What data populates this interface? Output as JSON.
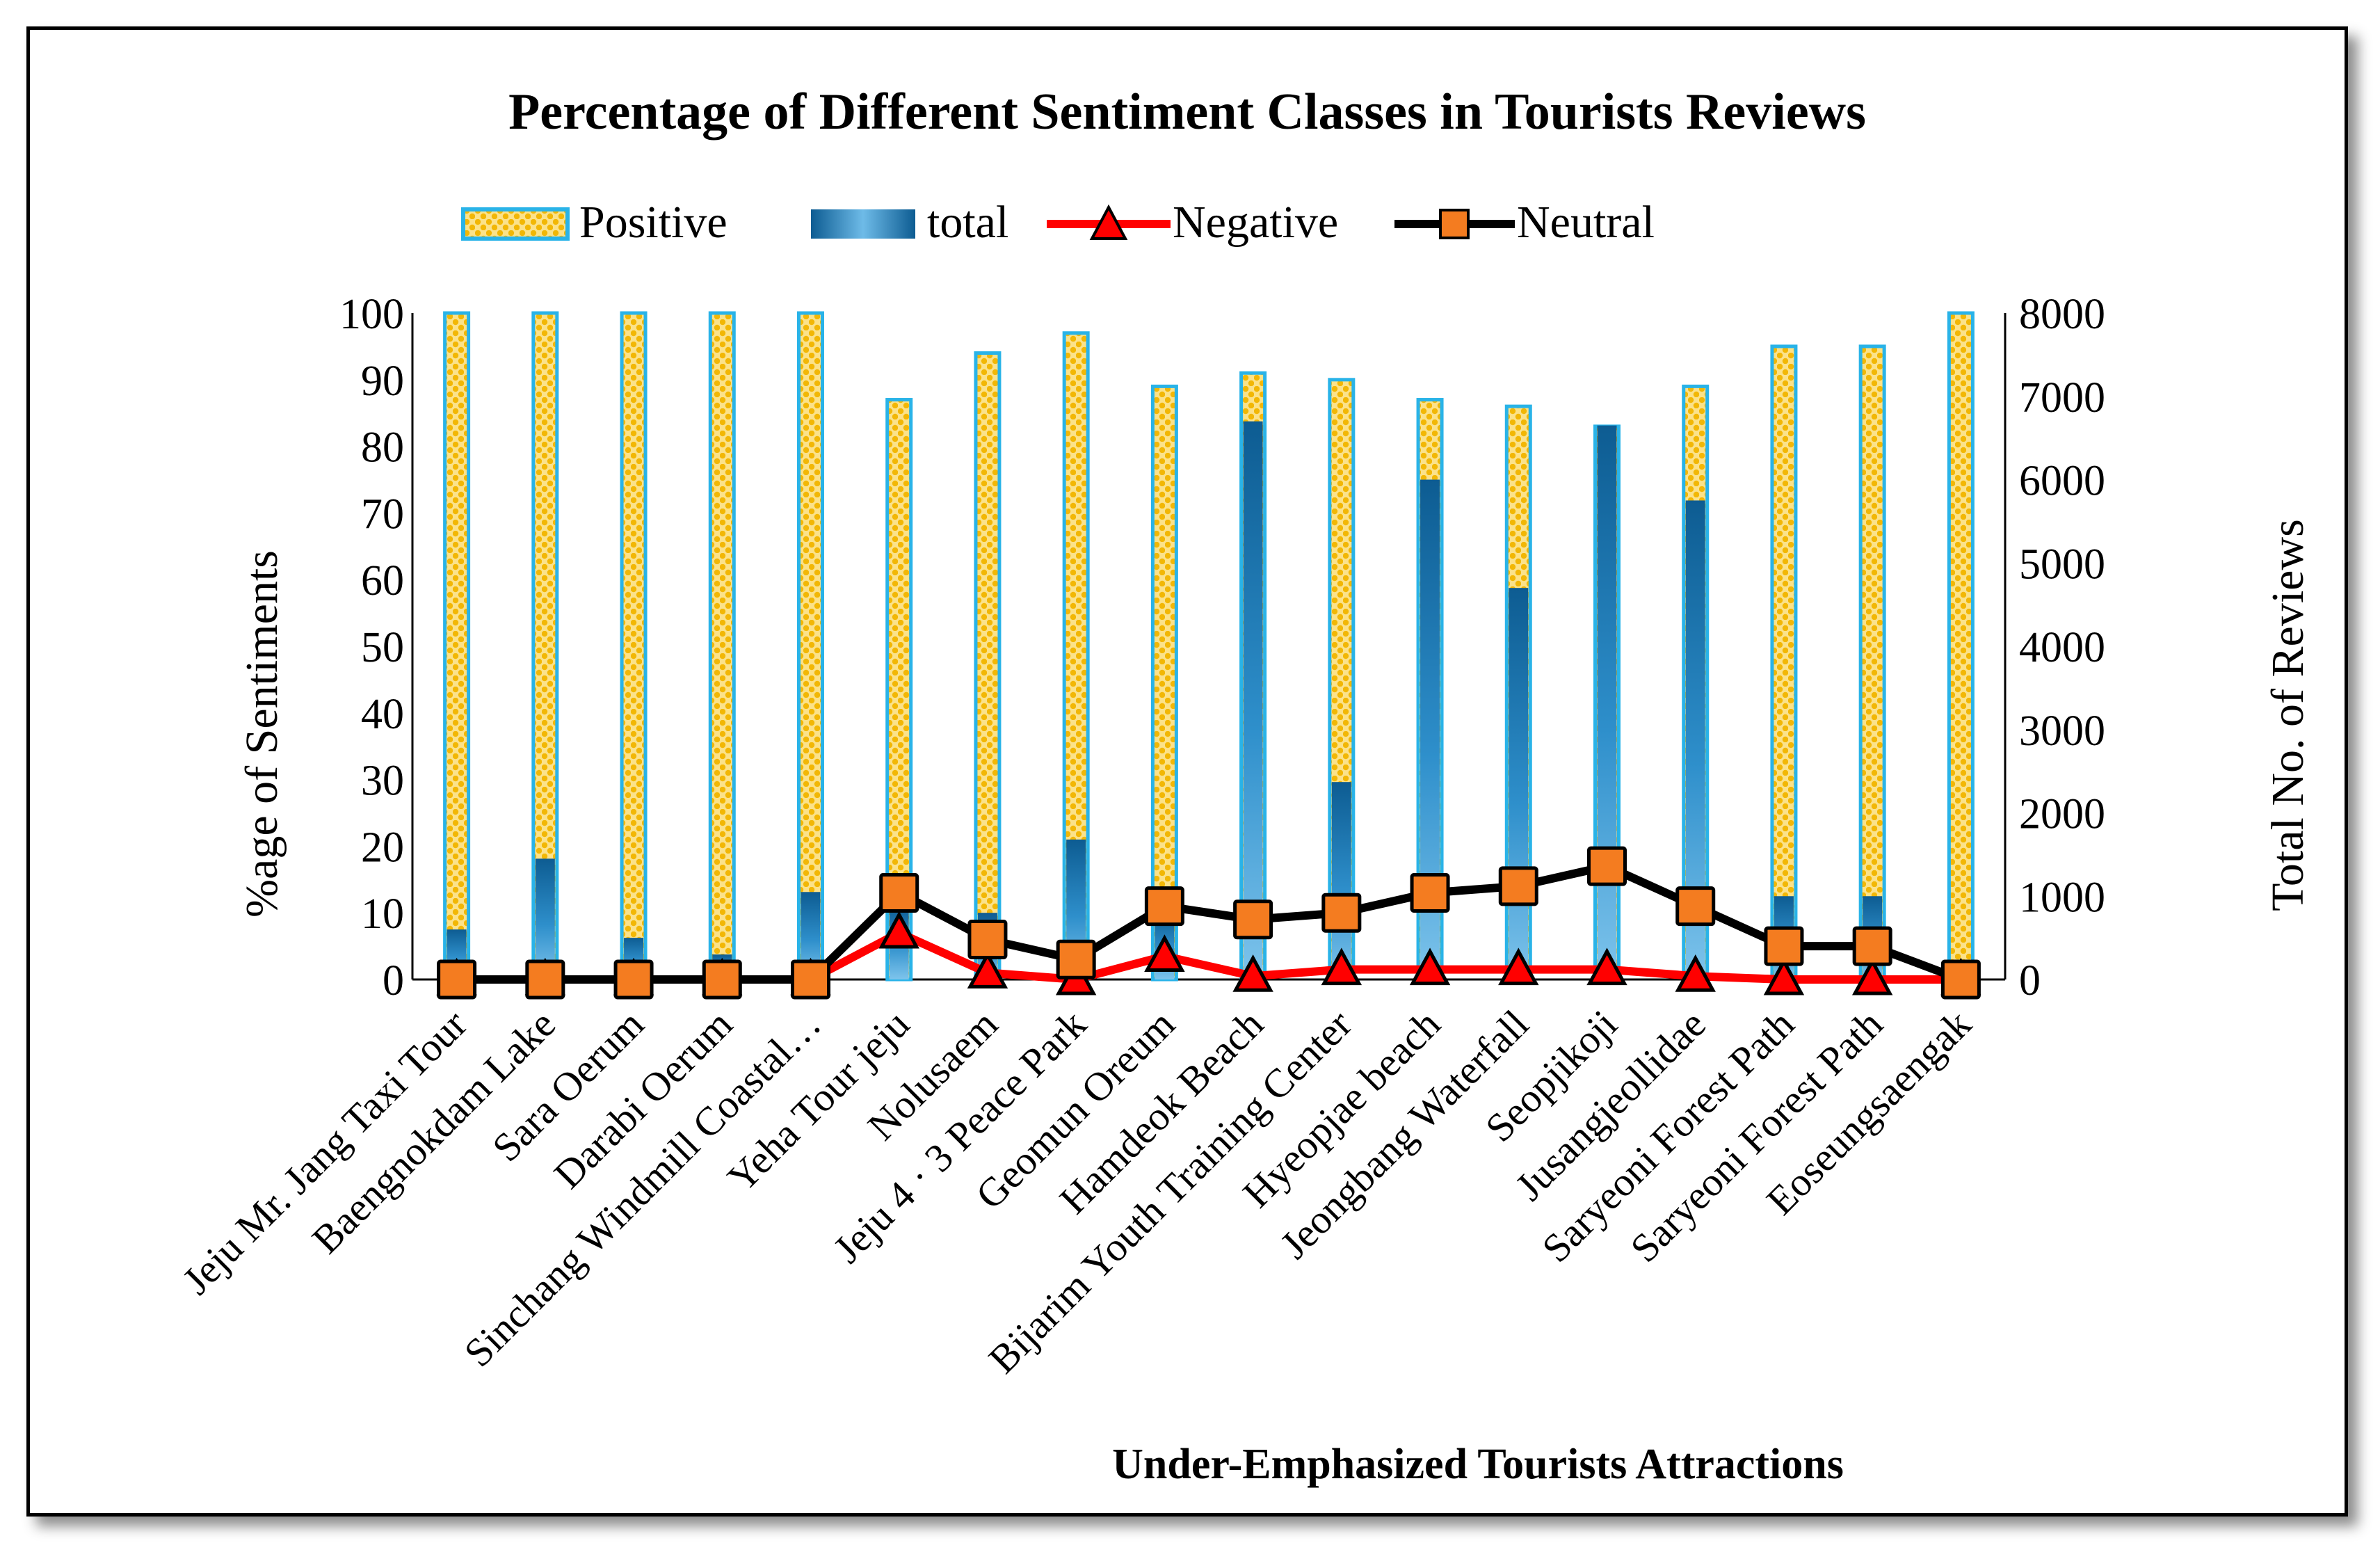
{
  "chart_data": {
    "type": "bar",
    "title": "Percentage of Different Sentiment Classes in Tourists Reviews",
    "xlabel": "Under-Emphasized Tourists Attractions",
    "ylabel": "%age of Sentiments",
    "y2label": "Total No. of  Reviews",
    "ylim": [
      0,
      100
    ],
    "y2lim": [
      0,
      8000
    ],
    "yticks": [
      "0",
      "10",
      "20",
      "30",
      "40",
      "50",
      "60",
      "70",
      "80",
      "90",
      "100"
    ],
    "y2ticks": [
      "0",
      "1000",
      "2000",
      "3000",
      "4000",
      "5000",
      "6000",
      "7000",
      "8000"
    ],
    "legend_position": "top",
    "categories": [
      "Jeju Mr. Jang Taxi Tour",
      "Baengnokdam Lake",
      "Sara Oerum",
      "Darabi Oerum",
      "Sinchang Windmill Coastal…",
      "Yeha Tour jeju",
      "Nolusaem",
      "Jeju 4 · 3 Peace Park",
      "Geomun Oreum",
      "Hamdeok Beach",
      "Bijarim Youth Training Center",
      "Hyeopjae beach",
      "Jeongbang Waterfall",
      "Seopjikoji",
      "Jusangjeollidae",
      "Saryeoni Forest Path",
      "Saryeoni Forest Path",
      "Eoseungsaengak"
    ],
    "series": [
      {
        "name": "Positive",
        "axis": "left",
        "kind": "bar",
        "color": "#F5C518",
        "border": "#29B3E8",
        "values": [
          100,
          100,
          100,
          100,
          100,
          87,
          94,
          97,
          89,
          91,
          90,
          87,
          86,
          83,
          89,
          95,
          95,
          100
        ]
      },
      {
        "name": "total",
        "axis": "right",
        "kind": "bar",
        "color": "#1F77B4",
        "values": [
          600,
          1450,
          500,
          300,
          1050,
          900,
          800,
          1680,
          800,
          6700,
          2370,
          6000,
          4700,
          6650,
          5750,
          1000,
          1000,
          0
        ]
      },
      {
        "name": "Negative",
        "axis": "left",
        "kind": "line",
        "color": "#FF0000",
        "values": [
          0,
          0,
          0,
          0,
          0,
          7,
          1,
          0,
          3.5,
          0.5,
          1.5,
          1.5,
          1.5,
          1.5,
          0.5,
          0,
          0,
          0
        ]
      },
      {
        "name": "Neutral",
        "axis": "left",
        "kind": "line",
        "color": "#000000",
        "values": [
          0,
          0,
          0,
          0,
          0,
          13,
          6,
          3,
          11,
          9,
          10,
          13,
          14,
          17,
          11,
          5,
          5,
          0
        ]
      }
    ]
  }
}
